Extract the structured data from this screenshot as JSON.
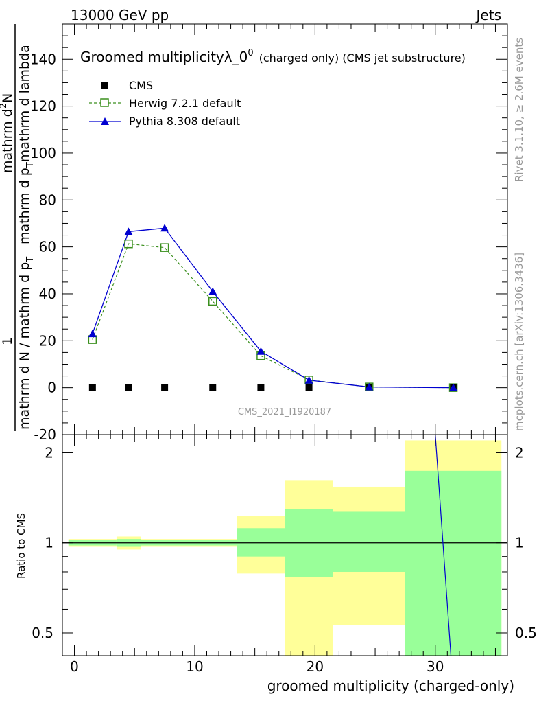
{
  "header": {
    "left": "13000 GeV pp",
    "right": "Jets"
  },
  "side": {
    "rivet": "Rivet 3.1.10, ≥ 2.6M events",
    "mcplots": "mcplots.cern.ch [arXiv:1306.3436]"
  },
  "colors": {
    "cms": "#000000",
    "herwig": "#3a8f1d",
    "pythia": "#0000d0",
    "band_outer": "#ffff99",
    "band_inner": "#99ff99",
    "watermark": "#999999"
  },
  "chart_data": {
    "type": "line",
    "title_main": "Groomed multiplicityλ_0",
    "title_sup": "0",
    "title_rest": "(charged only) (CMS jet substructure)",
    "analysis": "CMS_2021_I1920187",
    "ylabel_top": "1",
    "ylabel_bottom": "mathrm d N / mathrm d p",
    "ylabel_bottom_sub": "T",
    "ylabel_num": "mathrm d",
    "ylabel_num_sup": "2",
    "ylabel_num_rest": "N",
    "ylabel_den": "mathrm d p",
    "ylabel_den_sub": "T",
    "ylabel_den_rest": "mathrm d lambda",
    "ratio_ylabel": "Ratio to CMS",
    "xlabel": "groomed multiplicity (charged-only)",
    "xlim": [
      -1,
      36
    ],
    "ylim": [
      -20,
      155
    ],
    "yticks": [
      -20,
      0,
      20,
      40,
      60,
      80,
      100,
      120,
      140
    ],
    "xticks": [
      0,
      10,
      20,
      30
    ],
    "ratio_ylim": [
      0.42,
      2.3
    ],
    "ratio_yticks": [
      0.5,
      1,
      2
    ],
    "legend_position": "top-left",
    "series": [
      {
        "name": "CMS",
        "marker": "square",
        "x": [
          1.5,
          4.5,
          7.5,
          11.5,
          15.5,
          19.5,
          24.5,
          31.5
        ],
        "y": [
          0,
          0,
          0,
          0,
          0,
          0,
          0,
          0
        ]
      },
      {
        "name": "Herwig 7.2.1 default",
        "marker": "open-square",
        "line": "dashed",
        "x": [
          1.5,
          4.5,
          7.5,
          11.5,
          15.5,
          19.5,
          24.5,
          31.5
        ],
        "y": [
          20.5,
          61.3,
          59.7,
          36.8,
          13.6,
          3.3,
          0.3,
          0.0
        ]
      },
      {
        "name": "Pythia 8.308 default",
        "marker": "triangle",
        "line": "solid",
        "x": [
          1.5,
          4.5,
          7.5,
          11.5,
          15.5,
          19.5,
          24.5,
          31.5
        ],
        "y": [
          23.0,
          66.5,
          68.0,
          41.0,
          15.5,
          3.2,
          0.3,
          0.0
        ]
      }
    ],
    "ratio_bands": [
      {
        "x0": -0.5,
        "x1": 3.5,
        "outer": [
          0.97,
          1.03
        ],
        "inner": [
          0.98,
          1.02
        ]
      },
      {
        "x0": 3.5,
        "x1": 5.5,
        "outer": [
          0.95,
          1.05
        ],
        "inner": [
          0.97,
          1.03
        ]
      },
      {
        "x0": 5.5,
        "x1": 9.5,
        "outer": [
          0.97,
          1.03
        ],
        "inner": [
          0.98,
          1.02
        ]
      },
      {
        "x0": 9.5,
        "x1": 13.5,
        "outer": [
          0.97,
          1.03
        ],
        "inner": [
          0.98,
          1.02
        ]
      },
      {
        "x0": 13.5,
        "x1": 17.5,
        "outer": [
          0.79,
          1.23
        ],
        "inner": [
          0.9,
          1.12
        ]
      },
      {
        "x0": 17.5,
        "x1": 21.5,
        "outer": [
          0.41,
          1.62
        ],
        "inner": [
          0.77,
          1.3
        ]
      },
      {
        "x0": 21.5,
        "x1": 27.5,
        "outer": [
          0.53,
          1.54
        ],
        "inner": [
          0.8,
          1.27
        ]
      },
      {
        "x0": 27.5,
        "x1": 35.5,
        "outer": [
          0.38,
          2.2
        ],
        "inner": [
          0.38,
          1.74
        ]
      }
    ],
    "ratio_pythia_line": [
      [
        30.0,
        2.3
      ],
      [
        31.3,
        0.42
      ]
    ]
  }
}
